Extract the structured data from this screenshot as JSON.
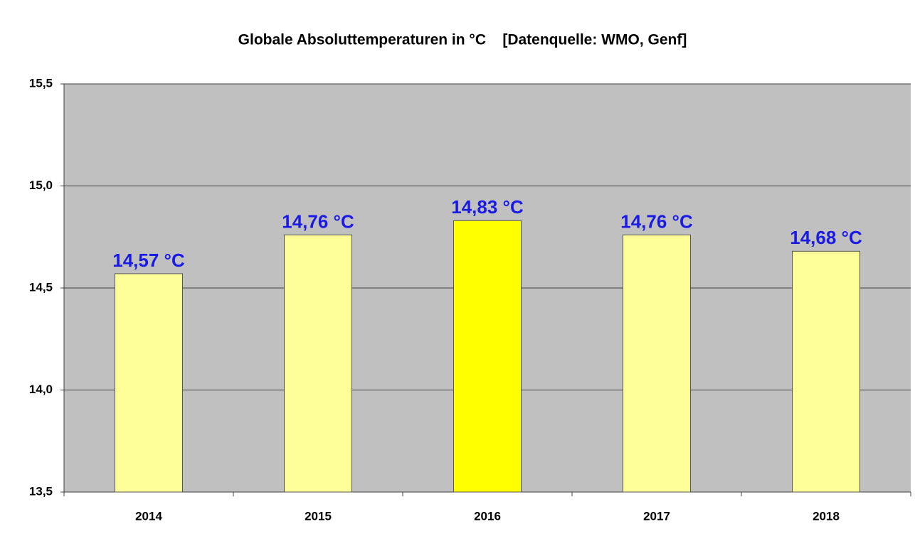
{
  "chart_data": {
    "type": "bar",
    "title": "Globale Absoluttemperaturen in °C    [Datenquelle: WMO, Genf]",
    "categories": [
      "2014",
      "2015",
      "2016",
      "2017",
      "2018"
    ],
    "values": [
      14.57,
      14.76,
      14.83,
      14.76,
      14.68
    ],
    "value_labels": [
      "14,57 °C",
      "14,76 °C",
      "14,83 °C",
      "14,76 °C",
      "14,68 °C"
    ],
    "colors": [
      "#ffff99",
      "#ffff99",
      "#ffff00",
      "#ffff99",
      "#ffff99"
    ],
    "ylim": [
      13.5,
      15.5
    ],
    "yticks": [
      {
        "value": 13.5,
        "label": "13,5"
      },
      {
        "value": 14.0,
        "label": "14,0"
      },
      {
        "value": 14.5,
        "label": "14,5"
      },
      {
        "value": 15.0,
        "label": "15,0"
      },
      {
        "value": 15.5,
        "label": "15,5"
      }
    ],
    "grid": true
  }
}
